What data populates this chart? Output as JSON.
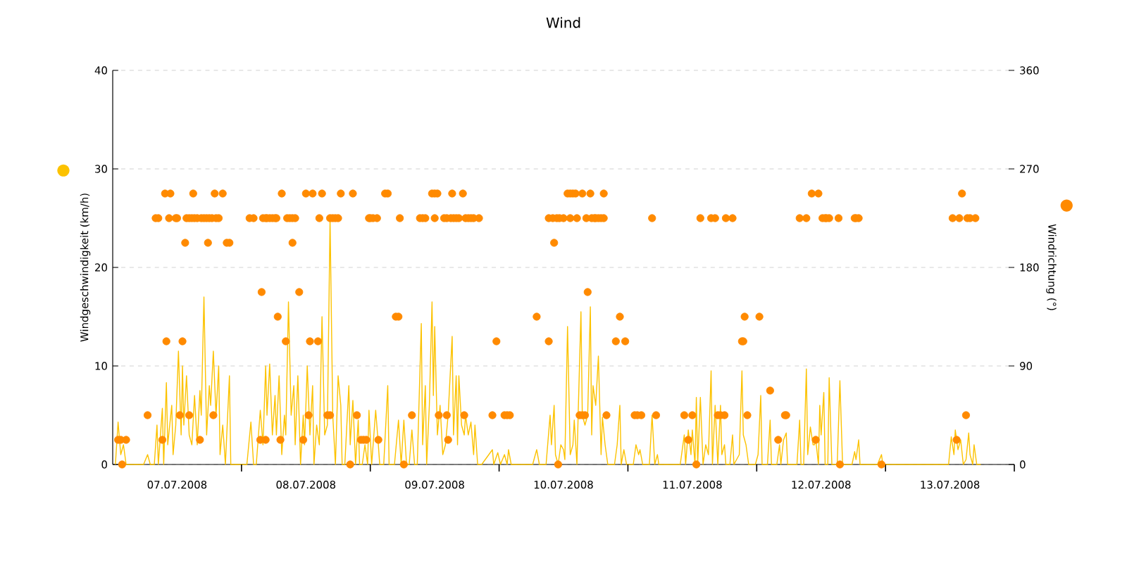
{
  "chart_data": {
    "type": "line",
    "title": "Wind",
    "ylabel": "Windgeschwindigkeit (km/h)",
    "y2label": "Windrichtung (°)",
    "xlim": [
      "2008-07-07T00:00",
      "2008-07-14T00:00"
    ],
    "xticks": [
      {
        "value": "2008-07-07T12:00",
        "label": "07.07.2008"
      },
      {
        "value": "2008-07-08T00:00",
        "label": null
      },
      {
        "value": "2008-07-08T12:00",
        "label": "08.07.2008"
      },
      {
        "value": "2008-07-09T00:00",
        "label": null
      },
      {
        "value": "2008-07-09T12:00",
        "label": "09.07.2008"
      },
      {
        "value": "2008-07-10T00:00",
        "label": null
      },
      {
        "value": "2008-07-10T12:00",
        "label": "10.07.2008"
      },
      {
        "value": "2008-07-11T00:00",
        "label": null
      },
      {
        "value": "2008-07-11T12:00",
        "label": "11.07.2008"
      },
      {
        "value": "2008-07-12T00:00",
        "label": null
      },
      {
        "value": "2008-07-12T12:00",
        "label": "12.07.2008"
      },
      {
        "value": "2008-07-13T00:00",
        "label": null
      },
      {
        "value": "2008-07-13T12:00",
        "label": "13.07.2008"
      },
      {
        "value": "2008-07-14T00:00",
        "label": null
      }
    ],
    "ylim": [
      0,
      40
    ],
    "yticks": [
      0,
      10,
      20,
      30,
      40
    ],
    "y2lim": [
      0,
      360
    ],
    "y2ticks": [
      0,
      90,
      180,
      270,
      360
    ],
    "grid": "y",
    "series": [
      {
        "type": "line",
        "color": "#fcc200",
        "x": [
          "2008-07-07T00:30",
          "2008-07-07T01:00",
          "2008-07-07T01:30",
          "2008-07-07T02:00",
          "2008-07-07T02:30",
          "2008-07-07T05:45",
          "2008-07-07T06:30",
          "2008-07-07T07:00",
          "2008-07-07T07:45",
          "2008-07-07T08:15",
          "2008-07-07T08:30",
          "2008-07-07T09:15",
          "2008-07-07T09:30",
          "2008-07-07T10:00",
          "2008-07-07T10:15",
          "2008-07-07T11:00",
          "2008-07-07T11:15",
          "2008-07-07T11:45",
          "2008-07-07T12:15",
          "2008-07-07T12:45",
          "2008-07-07T13:00",
          "2008-07-07T13:15",
          "2008-07-07T13:45",
          "2008-07-07T14:15",
          "2008-07-07T14:45",
          "2008-07-07T15:15",
          "2008-07-07T15:45",
          "2008-07-07T16:15",
          "2008-07-07T16:30",
          "2008-07-07T17:00",
          "2008-07-07T17:30",
          "2008-07-07T18:00",
          "2008-07-07T18:15",
          "2008-07-07T18:45",
          "2008-07-07T19:15",
          "2008-07-07T19:45",
          "2008-07-07T20:00",
          "2008-07-07T20:30",
          "2008-07-07T21:00",
          "2008-07-07T21:45",
          "2008-07-07T22:00",
          "2008-07-08T01:00",
          "2008-07-08T01:45",
          "2008-07-08T02:15",
          "2008-07-08T02:45",
          "2008-07-08T03:30",
          "2008-07-08T04:00",
          "2008-07-08T04:30",
          "2008-07-08T04:45",
          "2008-07-08T05:15",
          "2008-07-08T05:45",
          "2008-07-08T06:15",
          "2008-07-08T06:30",
          "2008-07-08T07:00",
          "2008-07-08T07:30",
          "2008-07-08T08:00",
          "2008-07-08T08:15",
          "2008-07-08T08:45",
          "2008-07-08T09:15",
          "2008-07-08T09:45",
          "2008-07-08T10:00",
          "2008-07-08T10:30",
          "2008-07-08T11:00",
          "2008-07-08T11:30",
          "2008-07-08T11:45",
          "2008-07-08T12:15",
          "2008-07-08T12:45",
          "2008-07-08T13:15",
          "2008-07-08T13:30",
          "2008-07-08T14:00",
          "2008-07-08T14:30",
          "2008-07-08T15:00",
          "2008-07-08T15:30",
          "2008-07-08T16:00",
          "2008-07-08T16:30",
          "2008-07-08T17:00",
          "2008-07-08T17:30",
          "2008-07-08T18:00",
          "2008-07-08T18:30",
          "2008-07-08T18:45",
          "2008-07-08T19:15",
          "2008-07-08T20:00",
          "2008-07-08T20:15",
          "2008-07-08T20:45",
          "2008-07-08T21:15",
          "2008-07-08T21:45",
          "2008-07-08T22:00",
          "2008-07-08T22:30",
          "2008-07-08T23:00",
          "2008-07-08T23:30",
          "2008-07-08T23:45",
          "2008-07-09T00:15",
          "2008-07-09T01:00",
          "2008-07-09T01:30",
          "2008-07-09T01:45",
          "2008-07-09T02:30",
          "2008-07-09T03:15",
          "2008-07-09T03:30",
          "2008-07-09T04:30",
          "2008-07-09T05:15",
          "2008-07-09T05:45",
          "2008-07-09T06:15",
          "2008-07-09T06:45",
          "2008-07-09T07:15",
          "2008-07-09T07:45",
          "2008-07-09T08:15",
          "2008-07-09T08:45",
          "2008-07-09T09:30",
          "2008-07-09T09:45",
          "2008-07-09T10:15",
          "2008-07-09T10:30",
          "2008-07-09T11:00",
          "2008-07-09T11:30",
          "2008-07-09T11:45",
          "2008-07-09T12:00",
          "2008-07-09T12:30",
          "2008-07-09T13:00",
          "2008-07-09T13:30",
          "2008-07-09T14:00",
          "2008-07-09T14:30",
          "2008-07-09T15:15",
          "2008-07-09T15:30",
          "2008-07-09T16:00",
          "2008-07-09T16:15",
          "2008-07-09T16:30",
          "2008-07-09T17:00",
          "2008-07-09T17:30",
          "2008-07-09T17:45",
          "2008-07-09T18:15",
          "2008-07-09T18:45",
          "2008-07-09T19:15",
          "2008-07-09T19:30",
          "2008-07-09T20:00",
          "2008-07-09T20:45",
          "2008-07-09T22:45",
          "2008-07-09T23:00",
          "2008-07-09T23:45",
          "2008-07-10T00:15",
          "2008-07-10T01:00",
          "2008-07-10T01:30",
          "2008-07-10T01:45",
          "2008-07-10T02:15",
          "2008-07-10T06:15",
          "2008-07-10T07:00",
          "2008-07-10T07:30",
          "2008-07-10T08:45",
          "2008-07-10T09:30",
          "2008-07-10T09:45",
          "2008-07-10T10:15",
          "2008-07-10T10:30",
          "2008-07-10T11:00",
          "2008-07-10T11:30",
          "2008-07-10T12:00",
          "2008-07-10T12:15",
          "2008-07-10T12:45",
          "2008-07-10T13:15",
          "2008-07-10T13:45",
          "2008-07-10T14:00",
          "2008-07-10T14:30",
          "2008-07-10T14:45",
          "2008-07-10T15:15",
          "2008-07-10T15:30",
          "2008-07-10T16:00",
          "2008-07-10T16:30",
          "2008-07-10T17:00",
          "2008-07-10T17:15",
          "2008-07-10T17:30",
          "2008-07-10T18:00",
          "2008-07-10T18:30",
          "2008-07-10T19:00",
          "2008-07-10T19:15",
          "2008-07-10T19:45",
          "2008-07-10T20:15",
          "2008-07-10T21:30",
          "2008-07-10T22:00",
          "2008-07-10T22:30",
          "2008-07-10T22:45",
          "2008-07-10T23:15",
          "2008-07-10T23:45",
          "2008-07-11T01:00",
          "2008-07-11T01:30",
          "2008-07-11T02:00",
          "2008-07-11T02:15",
          "2008-07-11T02:45",
          "2008-07-11T04:00",
          "2008-07-11T04:30",
          "2008-07-11T05:00",
          "2008-07-11T05:30",
          "2008-07-11T05:45",
          "2008-07-11T09:45",
          "2008-07-11T10:30",
          "2008-07-11T10:45",
          "2008-07-11T11:15",
          "2008-07-11T11:45",
          "2008-07-11T12:00",
          "2008-07-11T12:30",
          "2008-07-11T12:45",
          "2008-07-11T13:00",
          "2008-07-11T13:30",
          "2008-07-11T14:00",
          "2008-07-11T14:30",
          "2008-07-11T15:00",
          "2008-07-11T15:30",
          "2008-07-11T15:45",
          "2008-07-11T16:15",
          "2008-07-11T16:45",
          "2008-07-11T17:15",
          "2008-07-11T17:30",
          "2008-07-11T18:00",
          "2008-07-11T18:15",
          "2008-07-11T19:00",
          "2008-07-11T19:30",
          "2008-07-11T19:45",
          "2008-07-11T20:45",
          "2008-07-11T21:15",
          "2008-07-11T21:30",
          "2008-07-11T22:00",
          "2008-07-11T22:30",
          "2008-07-11T23:45",
          "2008-07-12T00:15",
          "2008-07-12T00:45",
          "2008-07-12T01:00",
          "2008-07-12T02:00",
          "2008-07-12T02:30",
          "2008-07-12T02:45",
          "2008-07-12T03:45",
          "2008-07-12T04:15",
          "2008-07-12T04:30",
          "2008-07-12T05:00",
          "2008-07-12T05:30",
          "2008-07-12T05:45",
          "2008-07-12T06:45",
          "2008-07-12T07:30",
          "2008-07-12T08:00",
          "2008-07-12T08:15",
          "2008-07-12T08:45",
          "2008-07-12T09:15",
          "2008-07-12T09:30",
          "2008-07-12T10:00",
          "2008-07-12T10:30",
          "2008-07-12T10:45",
          "2008-07-12T11:00",
          "2008-07-12T11:30",
          "2008-07-12T11:45",
          "2008-07-12T12:00",
          "2008-07-12T12:30",
          "2008-07-12T12:45",
          "2008-07-12T13:15",
          "2008-07-12T13:30",
          "2008-07-12T14:00",
          "2008-07-12T14:45",
          "2008-07-12T15:00",
          "2008-07-12T15:30",
          "2008-07-12T16:00",
          "2008-07-12T17:45",
          "2008-07-12T18:15",
          "2008-07-12T18:30",
          "2008-07-12T19:00",
          "2008-07-12T19:15",
          "2008-07-12T22:30",
          "2008-07-12T23:15",
          "2008-07-12T23:30",
          "2008-07-13T00:45",
          "2008-07-13T11:45",
          "2008-07-13T12:15",
          "2008-07-13T12:45",
          "2008-07-13T13:00",
          "2008-07-13T13:30",
          "2008-07-13T14:00",
          "2008-07-13T14:30",
          "2008-07-13T15:00",
          "2008-07-13T15:30",
          "2008-07-13T15:45",
          "2008-07-13T16:15",
          "2008-07-13T16:30",
          "2008-07-13T17:00",
          "2008-07-13T17:45"
        ],
        "values": [
          0,
          4.3,
          1,
          2,
          0,
          0,
          1,
          0,
          0,
          4,
          0,
          5.7,
          0,
          8.3,
          2,
          6,
          1,
          4,
          11.5,
          3,
          10,
          4,
          9,
          3,
          2,
          7,
          2,
          7.5,
          5,
          17,
          3,
          8,
          6,
          11.5,
          5,
          10,
          1,
          4,
          0,
          9,
          0,
          0,
          4.3,
          0,
          0,
          5.5,
          2,
          10,
          5,
          10.2,
          3,
          7,
          3,
          9,
          1,
          5,
          3,
          16.5,
          5,
          8,
          2,
          9,
          0,
          5,
          2,
          10,
          3,
          8,
          0,
          4,
          2,
          15,
          3,
          4,
          25,
          5,
          0,
          9,
          6,
          0,
          0,
          8,
          2,
          6.5,
          0,
          4.5,
          0,
          0,
          2,
          0,
          5.5,
          0,
          5.5,
          2,
          0,
          0,
          8,
          0,
          0,
          4.5,
          0,
          4.5,
          0,
          0,
          3.5,
          0,
          0,
          14.3,
          2,
          8,
          0,
          6,
          16.5,
          7,
          14,
          3,
          6,
          1,
          2,
          5,
          13,
          3,
          9,
          2,
          9,
          4,
          3,
          5,
          3,
          4.3,
          1,
          4,
          0,
          0,
          1.5,
          0,
          1.2,
          0,
          1,
          0,
          1.5,
          0,
          0,
          1.5,
          0,
          0,
          5,
          2,
          6,
          1,
          0,
          2,
          1.5,
          0.5,
          14,
          1,
          2,
          4.5,
          0,
          5.5,
          15.5,
          5,
          4,
          5,
          16,
          3,
          8,
          6,
          11,
          1,
          4.8,
          2,
          0,
          0,
          2,
          6,
          0,
          1.5,
          0,
          0,
          2,
          1,
          1.5,
          0,
          0,
          5,
          0,
          1,
          0,
          0,
          3,
          0,
          3.5,
          1,
          3.5,
          0,
          6.8,
          0,
          6.8,
          0,
          2,
          1,
          9.5,
          0,
          6,
          0,
          6,
          1,
          2,
          0,
          0,
          3,
          0,
          1,
          9.5,
          3,
          2,
          0,
          0,
          1,
          7,
          0,
          0,
          4.5,
          0,
          0,
          2,
          0,
          2.5,
          3.2,
          0,
          0,
          0,
          4.5,
          0,
          0,
          9.7,
          1,
          3.8,
          2,
          2,
          2.5,
          0,
          6,
          3,
          7.3,
          0,
          0,
          8.8,
          0,
          0,
          0,
          8.5,
          0,
          0,
          1.3,
          0.5,
          2.5,
          0,
          0,
          1,
          0,
          0,
          0,
          2.8,
          1,
          3.5,
          1.5,
          2.5,
          0,
          0.5,
          3.2,
          1,
          0,
          2,
          0,
          0
        ]
      },
      {
        "type": "scatter",
        "axis": "y2",
        "color": "#ff8a00",
        "x": [
          "2008-07-07T01:00",
          "2008-07-07T01:30",
          "2008-07-07T01:45",
          "2008-07-07T02:30",
          "2008-07-07T06:30",
          "2008-07-07T08:00",
          "2008-07-07T08:30",
          "2008-07-07T09:15",
          "2008-07-07T09:45",
          "2008-07-07T10:00",
          "2008-07-07T10:30",
          "2008-07-07T10:45",
          "2008-07-07T11:45",
          "2008-07-07T12:00",
          "2008-07-07T12:30",
          "2008-07-07T13:00",
          "2008-07-07T13:30",
          "2008-07-07T13:45",
          "2008-07-07T14:15",
          "2008-07-07T14:15",
          "2008-07-07T14:45",
          "2008-07-07T15:00",
          "2008-07-07T15:15",
          "2008-07-07T15:45",
          "2008-07-07T16:15",
          "2008-07-07T16:30",
          "2008-07-07T17:00",
          "2008-07-07T17:30",
          "2008-07-07T17:45",
          "2008-07-07T18:00",
          "2008-07-07T18:30",
          "2008-07-07T18:45",
          "2008-07-07T19:00",
          "2008-07-07T19:15",
          "2008-07-07T19:45",
          "2008-07-07T20:30",
          "2008-07-07T21:15",
          "2008-07-07T21:45",
          "2008-07-08T01:30",
          "2008-07-08T02:15",
          "2008-07-08T03:30",
          "2008-07-08T03:45",
          "2008-07-08T04:00",
          "2008-07-08T04:30",
          "2008-07-08T04:30",
          "2008-07-08T04:45",
          "2008-07-08T05:15",
          "2008-07-08T05:45",
          "2008-07-08T06:15",
          "2008-07-08T06:30",
          "2008-07-08T06:45",
          "2008-07-08T07:15",
          "2008-07-08T07:30",
          "2008-07-08T08:15",
          "2008-07-08T08:30",
          "2008-07-08T09:00",
          "2008-07-08T09:30",
          "2008-07-08T09:30",
          "2008-07-08T10:00",
          "2008-07-08T10:45",
          "2008-07-08T11:30",
          "2008-07-08T12:00",
          "2008-07-08T12:30",
          "2008-07-08T12:45",
          "2008-07-08T13:15",
          "2008-07-08T14:15",
          "2008-07-08T14:30",
          "2008-07-08T15:00",
          "2008-07-08T16:00",
          "2008-07-08T16:30",
          "2008-07-08T16:30",
          "2008-07-08T17:00",
          "2008-07-08T17:30",
          "2008-07-08T18:00",
          "2008-07-08T18:30",
          "2008-07-08T20:15",
          "2008-07-08T20:45",
          "2008-07-08T21:30",
          "2008-07-08T22:15",
          "2008-07-08T22:45",
          "2008-07-08T23:15",
          "2008-07-08T23:45",
          "2008-07-09T00:00",
          "2008-07-09T00:30",
          "2008-07-09T01:15",
          "2008-07-09T01:30",
          "2008-07-09T02:45",
          "2008-07-09T03:15",
          "2008-07-09T04:45",
          "2008-07-09T05:15",
          "2008-07-09T05:30",
          "2008-07-09T06:15",
          "2008-07-09T07:45",
          "2008-07-09T09:15",
          "2008-07-09T09:45",
          "2008-07-09T10:15",
          "2008-07-09T11:30",
          "2008-07-09T12:00",
          "2008-07-09T12:00",
          "2008-07-09T12:30",
          "2008-07-09T12:45",
          "2008-07-09T13:45",
          "2008-07-09T14:15",
          "2008-07-09T14:15",
          "2008-07-09T14:30",
          "2008-07-09T15:00",
          "2008-07-09T15:15",
          "2008-07-09T15:30",
          "2008-07-09T16:00",
          "2008-07-09T16:30",
          "2008-07-09T17:15",
          "2008-07-09T17:30",
          "2008-07-09T17:45",
          "2008-07-09T18:15",
          "2008-07-09T18:45",
          "2008-07-09T19:15",
          "2008-07-09T20:15",
          "2008-07-09T22:45",
          "2008-07-09T23:30",
          "2008-07-10T01:00",
          "2008-07-10T01:30",
          "2008-07-10T02:00",
          "2008-07-10T07:00",
          "2008-07-10T09:15",
          "2008-07-10T09:15",
          "2008-07-10T10:00",
          "2008-07-10T10:15",
          "2008-07-10T10:45",
          "2008-07-10T11:00",
          "2008-07-10T11:15",
          "2008-07-10T12:00",
          "2008-07-10T12:45",
          "2008-07-10T13:15",
          "2008-07-10T13:15",
          "2008-07-10T13:45",
          "2008-07-10T14:15",
          "2008-07-10T14:30",
          "2008-07-10T15:00",
          "2008-07-10T15:30",
          "2008-07-10T15:30",
          "2008-07-10T16:00",
          "2008-07-10T16:15",
          "2008-07-10T16:30",
          "2008-07-10T17:00",
          "2008-07-10T17:15",
          "2008-07-10T17:45",
          "2008-07-10T18:00",
          "2008-07-10T18:30",
          "2008-07-10T19:00",
          "2008-07-10T19:30",
          "2008-07-10T19:30",
          "2008-07-10T20:00",
          "2008-07-10T21:45",
          "2008-07-10T22:30",
          "2008-07-10T23:30",
          "2008-07-11T01:15",
          "2008-07-11T01:45",
          "2008-07-11T02:30",
          "2008-07-11T04:30",
          "2008-07-11T05:15",
          "2008-07-11T10:30",
          "2008-07-11T11:15",
          "2008-07-11T12:00",
          "2008-07-11T12:45",
          "2008-07-11T13:30",
          "2008-07-11T15:30",
          "2008-07-11T16:15",
          "2008-07-11T16:45",
          "2008-07-11T17:15",
          "2008-07-11T18:00",
          "2008-07-11T18:15",
          "2008-07-11T19:30",
          "2008-07-11T21:15",
          "2008-07-11T21:30",
          "2008-07-11T21:45",
          "2008-07-11T22:15",
          "2008-07-12T00:30",
          "2008-07-12T02:30",
          "2008-07-12T04:00",
          "2008-07-12T05:15",
          "2008-07-12T05:30",
          "2008-07-12T08:00",
          "2008-07-12T09:15",
          "2008-07-12T10:15",
          "2008-07-12T11:00",
          "2008-07-12T11:30",
          "2008-07-12T12:15",
          "2008-07-12T12:45",
          "2008-07-12T13:00",
          "2008-07-12T13:30",
          "2008-07-12T15:15",
          "2008-07-12T15:30",
          "2008-07-12T18:15",
          "2008-07-12T18:30",
          "2008-07-12T19:00",
          "2008-07-12T23:15",
          "2008-07-13T12:30",
          "2008-07-13T13:15",
          "2008-07-13T13:45",
          "2008-07-13T14:15",
          "2008-07-13T15:00",
          "2008-07-13T15:15",
          "2008-07-13T15:45",
          "2008-07-13T16:45"
        ],
        "values": [
          22.5,
          22.5,
          0,
          22.5,
          45,
          225,
          225,
          22.5,
          247.5,
          112.5,
          225,
          247.5,
          225,
          225,
          45,
          112.5,
          202.5,
          225,
          45,
          225,
          225,
          247.5,
          225,
          225,
          22.5,
          225,
          225,
          225,
          202.5,
          225,
          225,
          45,
          247.5,
          225,
          225,
          247.5,
          202.5,
          202.5,
          225,
          225,
          22.5,
          157.5,
          225,
          225,
          22.5,
          225,
          225,
          225,
          225,
          225,
          135,
          22.5,
          247.5,
          112.5,
          225,
          225,
          225,
          202.5,
          225,
          157.5,
          22.5,
          247.5,
          45,
          112.5,
          247.5,
          112.5,
          225,
          247.5,
          45,
          45,
          225,
          225,
          225,
          225,
          247.5,
          0,
          247.5,
          45,
          22.5,
          22.5,
          22.5,
          225,
          225,
          225,
          225,
          22.5,
          247.5,
          247.5,
          135,
          135,
          225,
          0,
          45,
          225,
          225,
          225,
          247.5,
          225,
          247.5,
          247.5,
          45,
          225,
          45,
          225,
          22.5,
          225,
          247.5,
          225,
          225,
          225,
          247.5,
          45,
          225,
          225,
          225,
          225,
          225,
          45,
          112.5,
          45,
          45,
          45,
          135,
          112.5,
          225,
          225,
          202.5,
          225,
          0,
          225,
          225,
          247.5,
          247.5,
          225,
          247.5,
          247.5,
          225,
          45,
          45,
          247.5,
          45,
          225,
          157.5,
          247.5,
          225,
          225,
          225,
          225,
          225,
          225,
          247.5,
          45,
          112.5,
          135,
          112.5,
          45,
          45,
          45,
          225,
          45,
          45,
          22.5,
          45,
          0,
          225,
          225,
          225,
          45,
          45,
          45,
          225,
          225,
          112.5,
          112.5,
          135,
          45,
          135,
          67.5,
          22.5,
          45,
          45,
          225,
          225,
          247.5,
          22.5,
          247.5,
          225,
          225,
          225,
          225,
          225,
          0,
          225,
          225,
          225,
          0,
          225,
          22.5,
          225,
          247.5,
          45,
          225,
          225,
          225
        ]
      }
    ]
  }
}
